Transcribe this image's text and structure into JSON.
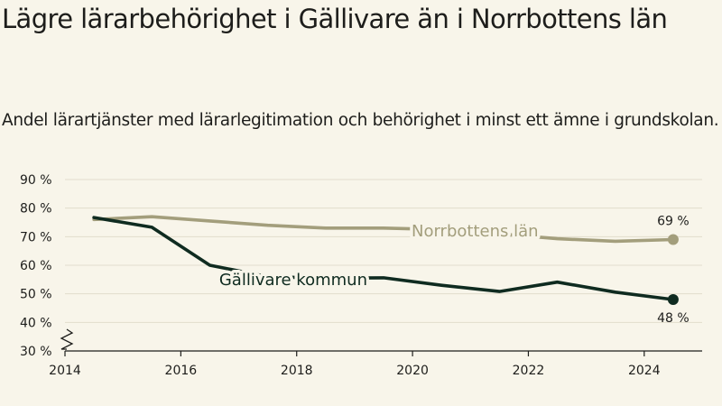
{
  "header": {
    "title": "Lägre lärarbehörighet i Gällivare än i Norrbottens län",
    "subtitle": "Andel lärartjänster med lärarlegitimation och behörighet i minst ett ämne i grundskolan."
  },
  "chart_data": {
    "type": "line",
    "title": "Lägre lärarbehörighet i Gällivare än i Norrbottens län",
    "subtitle": "Andel lärartjänster med lärarlegitimation och behörighet i minst ett ämne i grundskolan.",
    "xlim": [
      2014,
      2025
    ],
    "ylim": [
      30,
      90
    ],
    "x_ticks": [
      {
        "value": 2014,
        "label": "2014"
      },
      {
        "value": 2016,
        "label": "2016"
      },
      {
        "value": 2018,
        "label": "2018"
      },
      {
        "value": 2020,
        "label": "2020"
      },
      {
        "value": 2022,
        "label": "2022"
      },
      {
        "value": 2024,
        "label": "2024"
      }
    ],
    "y_ticks": [
      {
        "value": 30,
        "label": "30 %"
      },
      {
        "value": 40,
        "label": "40 %"
      },
      {
        "value": 50,
        "label": "50 %"
      },
      {
        "value": 60,
        "label": "60 %"
      },
      {
        "value": 70,
        "label": "70 %"
      },
      {
        "value": 80,
        "label": "80 %"
      },
      {
        "value": 90,
        "label": "90 %"
      }
    ],
    "grid": true,
    "axis_break": true,
    "series": [
      {
        "name": "Norrbottens län",
        "color": "#a39e7c",
        "x": [
          2014.5,
          2015.5,
          2016.5,
          2017.5,
          2018.5,
          2019.5,
          2020.5,
          2021.5,
          2022.5,
          2023.5,
          2024.5
        ],
        "y": [
          76,
          77,
          75.5,
          74,
          73,
          73,
          72.5,
          71,
          69.3,
          68.4,
          69
        ],
        "end_label": "69 %"
      },
      {
        "name": "Gällivare kommun",
        "color": "#0f2b20",
        "x": [
          2014.5,
          2015.5,
          2016.5,
          2017.5,
          2018.5,
          2019.5,
          2020.5,
          2021.5,
          2022.5,
          2023.5,
          2024.5
        ],
        "y": [
          76.7,
          73.3,
          60,
          56,
          55.5,
          55.6,
          53,
          50.8,
          54.1,
          50.6,
          48
        ],
        "end_label": "48 %"
      }
    ]
  }
}
